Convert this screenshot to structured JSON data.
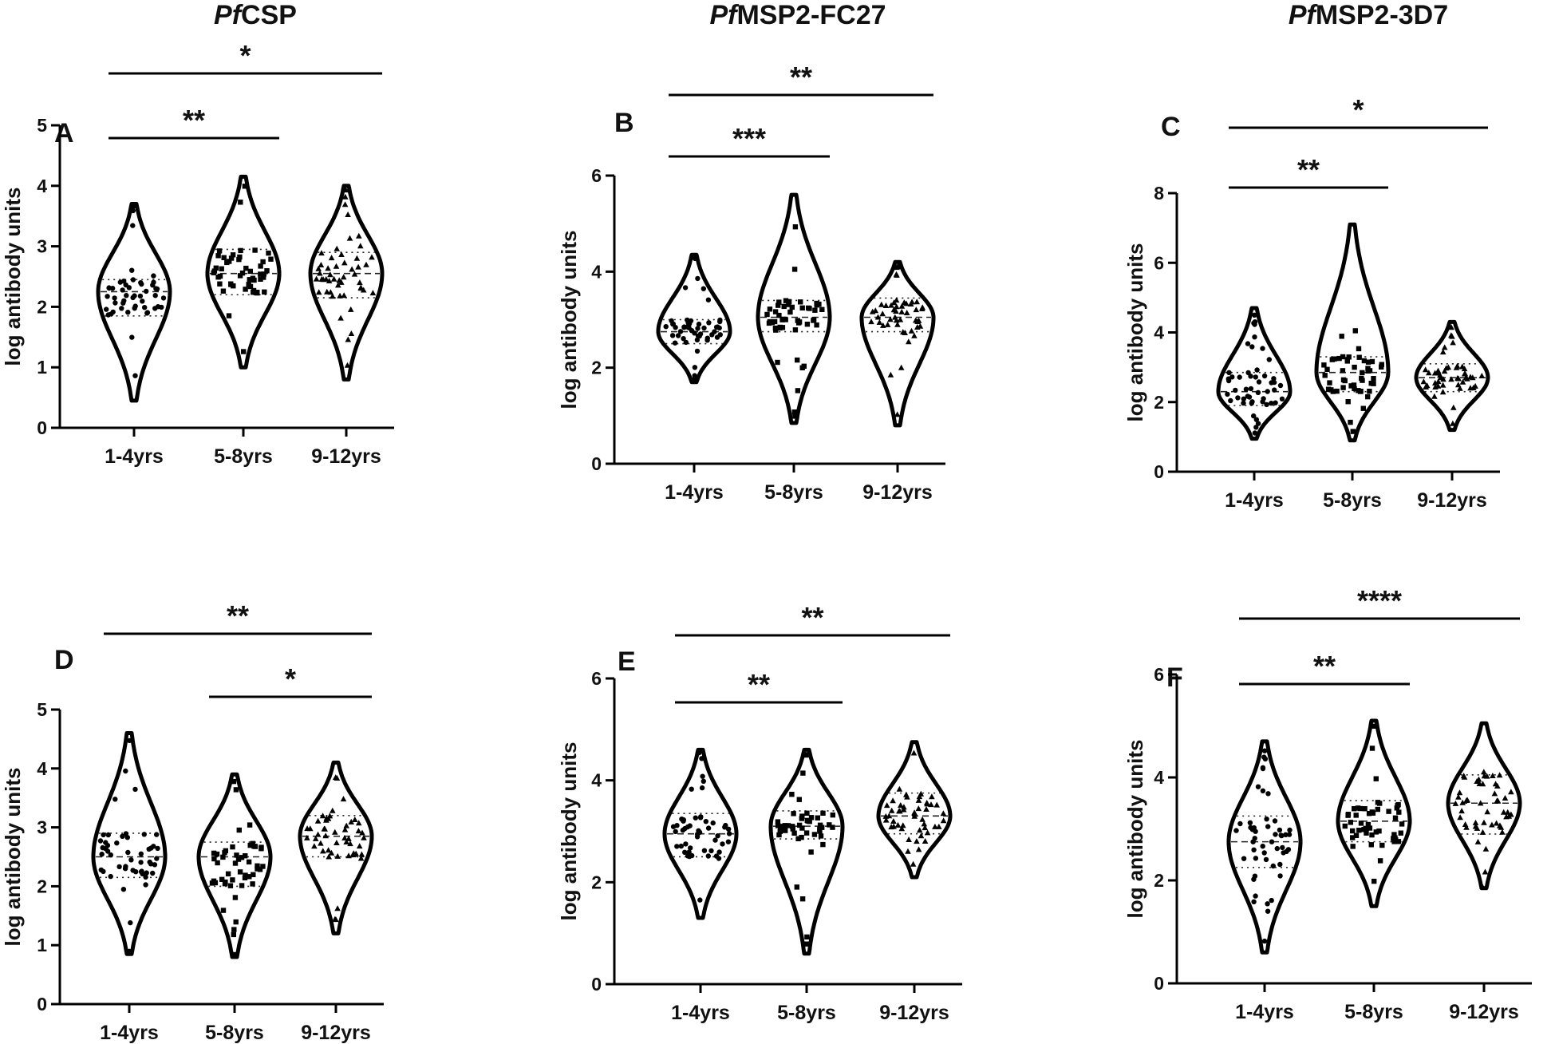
{
  "column_titles": [
    {
      "italic": "Pf",
      "rest": "CSP"
    },
    {
      "italic": "Pf",
      "rest": "MSP2-FC27"
    },
    {
      "italic": "Pf",
      "rest": "MSP2-3D7"
    }
  ],
  "chart_data": [
    {
      "type": "violin",
      "panel": "A",
      "ylabel": "log antibody units",
      "categories": [
        "1-4yrs",
        "5-8yrs",
        "9-12yrs"
      ],
      "ylim": [
        0,
        5
      ],
      "yticks": [
        0,
        1,
        2,
        3,
        4,
        5
      ],
      "series": [
        {
          "category": "1-4yrs",
          "min": 0.45,
          "max": 3.7,
          "q1": 1.85,
          "median": 2.25,
          "q3": 2.45,
          "marker": "circle"
        },
        {
          "category": "5-8yrs",
          "min": 1.0,
          "max": 4.15,
          "q1": 2.2,
          "median": 2.55,
          "q3": 2.95,
          "marker": "square"
        },
        {
          "category": "9-12yrs",
          "min": 0.8,
          "max": 4.0,
          "q1": 2.15,
          "median": 2.55,
          "q3": 2.9,
          "marker": "triangle"
        }
      ],
      "significance": [
        {
          "from": "1-4yrs",
          "to": "5-8yrs",
          "label": "**"
        },
        {
          "from": "1-4yrs",
          "to": "9-12yrs",
          "label": "*"
        }
      ]
    },
    {
      "type": "violin",
      "panel": "B",
      "ylabel": "log antibody units",
      "categories": [
        "1-4yrs",
        "5-8yrs",
        "9-12yrs"
      ],
      "ylim": [
        0,
        6
      ],
      "yticks": [
        0,
        2,
        4,
        6
      ],
      "series": [
        {
          "category": "1-4yrs",
          "min": 1.7,
          "max": 4.35,
          "q1": 2.5,
          "median": 2.75,
          "q3": 3.0,
          "marker": "circle"
        },
        {
          "category": "5-8yrs",
          "min": 0.85,
          "max": 5.6,
          "q1": 2.75,
          "median": 3.05,
          "q3": 3.4,
          "marker": "square"
        },
        {
          "category": "9-12yrs",
          "min": 0.8,
          "max": 4.2,
          "q1": 2.75,
          "median": 3.05,
          "q3": 3.45,
          "marker": "triangle"
        }
      ],
      "significance": [
        {
          "from": "1-4yrs",
          "to": "5-8yrs",
          "label": "***"
        },
        {
          "from": "1-4yrs",
          "to": "9-12yrs",
          "label": "**"
        }
      ]
    },
    {
      "type": "violin",
      "panel": "C",
      "ylabel": "log antibody units",
      "categories": [
        "1-4yrs",
        "5-8yrs",
        "9-12yrs"
      ],
      "ylim": [
        0,
        8
      ],
      "yticks": [
        0,
        2,
        4,
        6,
        8
      ],
      "series": [
        {
          "category": "1-4yrs",
          "min": 0.95,
          "max": 4.7,
          "q1": 1.9,
          "median": 2.3,
          "q3": 2.85,
          "marker": "circle"
        },
        {
          "category": "5-8yrs",
          "min": 0.9,
          "max": 7.1,
          "q1": 2.3,
          "median": 2.85,
          "q3": 3.3,
          "marker": "square"
        },
        {
          "category": "9-12yrs",
          "min": 1.2,
          "max": 4.3,
          "q1": 2.3,
          "median": 2.7,
          "q3": 3.1,
          "marker": "triangle"
        }
      ],
      "significance": [
        {
          "from": "1-4yrs",
          "to": "5-8yrs",
          "label": "**"
        },
        {
          "from": "1-4yrs",
          "to": "9-12yrs",
          "label": "*"
        }
      ]
    },
    {
      "type": "violin",
      "panel": "D",
      "ylabel": "log antibody units",
      "categories": [
        "1-4yrs",
        "5-8yrs",
        "9-12yrs"
      ],
      "ylim": [
        0,
        5
      ],
      "yticks": [
        0,
        1,
        2,
        3,
        4,
        5
      ],
      "series": [
        {
          "category": "1-4yrs",
          "min": 0.85,
          "max": 4.6,
          "q1": 2.15,
          "median": 2.5,
          "q3": 2.9,
          "marker": "circle"
        },
        {
          "category": "5-8yrs",
          "min": 0.8,
          "max": 3.9,
          "q1": 2.0,
          "median": 2.5,
          "q3": 2.75,
          "marker": "square"
        },
        {
          "category": "9-12yrs",
          "min": 1.2,
          "max": 4.1,
          "q1": 2.5,
          "median": 2.85,
          "q3": 3.2,
          "marker": "triangle"
        }
      ],
      "significance": [
        {
          "from": "5-8yrs",
          "to": "9-12yrs",
          "label": "*"
        },
        {
          "from": "1-4yrs",
          "to": "9-12yrs",
          "label": "**"
        }
      ]
    },
    {
      "type": "violin",
      "panel": "E",
      "ylabel": "log antibody units",
      "categories": [
        "1-4yrs",
        "5-8yrs",
        "9-12yrs"
      ],
      "ylim": [
        0,
        6
      ],
      "yticks": [
        0,
        2,
        4,
        6
      ],
      "series": [
        {
          "category": "1-4yrs",
          "min": 1.3,
          "max": 4.6,
          "q1": 2.5,
          "median": 2.95,
          "q3": 3.35,
          "marker": "circle"
        },
        {
          "category": "5-8yrs",
          "min": 0.6,
          "max": 4.6,
          "q1": 2.85,
          "median": 3.1,
          "q3": 3.4,
          "marker": "square"
        },
        {
          "category": "9-12yrs",
          "min": 2.1,
          "max": 4.75,
          "q1": 2.95,
          "median": 3.3,
          "q3": 3.75,
          "marker": "triangle"
        }
      ],
      "significance": [
        {
          "from": "1-4yrs",
          "to": "5-8yrs",
          "label": "**"
        },
        {
          "from": "1-4yrs",
          "to": "9-12yrs",
          "label": "**"
        }
      ]
    },
    {
      "type": "violin",
      "panel": "F",
      "ylabel": "log antibody units",
      "categories": [
        "1-4yrs",
        "5-8yrs",
        "9-12yrs"
      ],
      "ylim": [
        0,
        6
      ],
      "yticks": [
        0,
        2,
        4,
        6
      ],
      "series": [
        {
          "category": "1-4yrs",
          "min": 0.6,
          "max": 4.7,
          "q1": 2.25,
          "median": 2.75,
          "q3": 3.25,
          "marker": "circle"
        },
        {
          "category": "5-8yrs",
          "min": 1.5,
          "max": 5.1,
          "q1": 2.75,
          "median": 3.15,
          "q3": 3.55,
          "marker": "square"
        },
        {
          "category": "9-12yrs",
          "min": 1.85,
          "max": 5.05,
          "q1": 2.9,
          "median": 3.5,
          "q3": 4.05,
          "marker": "triangle"
        }
      ],
      "significance": [
        {
          "from": "1-4yrs",
          "to": "5-8yrs",
          "label": "**"
        },
        {
          "from": "1-4yrs",
          "to": "9-12yrs",
          "label": "****"
        }
      ]
    }
  ]
}
